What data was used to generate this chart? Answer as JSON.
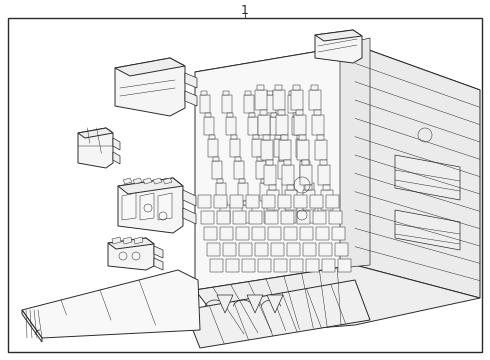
{
  "title": "1",
  "bg_color": "#ffffff",
  "line_color": "#2a2a2a",
  "lw_main": 1.0,
  "lw_med": 0.7,
  "lw_thin": 0.5,
  "lw_hair": 0.35,
  "fig_width": 4.9,
  "fig_height": 3.6,
  "dpi": 100
}
